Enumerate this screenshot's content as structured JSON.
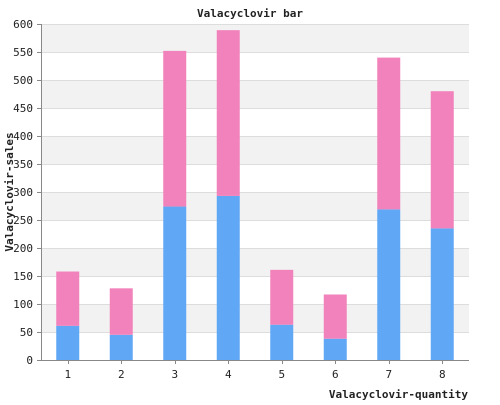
{
  "chart_data": {
    "type": "bar",
    "stacked": true,
    "title": "Valacyclovir bar",
    "xlabel": "Valacyclovir-quantity",
    "ylabel": "Valacyclovir-sales",
    "categories": [
      "1",
      "2",
      "3",
      "4",
      "5",
      "6",
      "7",
      "8"
    ],
    "ylim": [
      0,
      600
    ],
    "yticks": [
      0,
      50,
      100,
      150,
      200,
      250,
      300,
      350,
      400,
      450,
      500,
      550,
      600
    ],
    "grid": true,
    "legend": "none",
    "series": [
      {
        "color": "#60a8f6",
        "values": [
          61,
          45,
          274,
          293,
          63,
          38,
          269,
          235
        ]
      },
      {
        "color": "#f282bb",
        "values": [
          97,
          83,
          278,
          296,
          98,
          79,
          271,
          245
        ]
      }
    ],
    "colors": {
      "band": "#f2f2f2",
      "gridline": "#dddddd",
      "axis": "#888888"
    }
  }
}
